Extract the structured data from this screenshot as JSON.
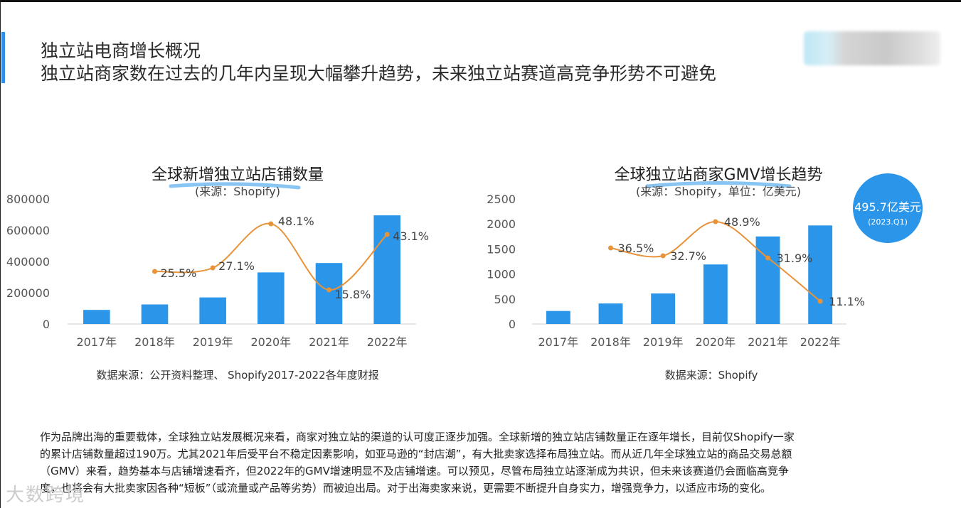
{
  "header": {
    "title_line1": "独立站电商增长概况",
    "title_line2": "独立站商家数在过去的几年内呈现大幅攀升趋势，未来独立站赛道高竞争形势不可避免"
  },
  "colors": {
    "bar": "#2b95e9",
    "line": "#e8923a",
    "accent": "#2f8fe6",
    "bubble": "#2b95e9"
  },
  "chart_data": [
    {
      "type": "bar",
      "title": "全球新增独立站店铺数量",
      "subtitle": "(来源：Shopify)",
      "categories": [
        "2017年",
        "2018年",
        "2019年",
        "2020年",
        "2021年",
        "2022年"
      ],
      "series": [
        {
          "name": "",
          "kind": "bar",
          "values": [
            90000,
            125000,
            170000,
            330000,
            390000,
            695000
          ]
        },
        {
          "name": "",
          "kind": "line",
          "values": [
            null,
            25.5,
            27.1,
            48.1,
            15.8,
            43.1
          ],
          "labels": [
            "",
            "25.5%",
            "27.1%",
            "48.1%",
            "15.8%",
            "43.1%"
          ]
        }
      ],
      "yticks": [
        "800000",
        "600000",
        "400000",
        "200000",
        "0"
      ],
      "ylim": [
        0,
        800000
      ],
      "grid": false,
      "source": "数据来源：公开资料整理、 Shopify2017-2022各年度财报"
    },
    {
      "type": "bar",
      "title": "全球独立站商家GMV增长趋势",
      "subtitle": "(来源：Shopify，单位：亿美元)",
      "categories": [
        "2017年",
        "2018年",
        "2019年",
        "2020年",
        "2021年",
        "2022年"
      ],
      "series": [
        {
          "name": "",
          "kind": "bar",
          "values": [
            260,
            410,
            610,
            1190,
            1750,
            1970
          ]
        },
        {
          "name": "",
          "kind": "line",
          "values": [
            null,
            36.5,
            32.7,
            48.9,
            31.9,
            11.1
          ],
          "labels": [
            "",
            "36.5%",
            "32.7%",
            "48.9%",
            "31.9%",
            "11.1%"
          ]
        }
      ],
      "yticks": [
        "2500",
        "2000",
        "1500",
        "1000",
        "500",
        "0"
      ],
      "ylim": [
        0,
        2500
      ],
      "grid": false,
      "source": "数据来源：Shopify",
      "callout": {
        "value": "495.7亿美元",
        "note": "(2023.Q1)"
      }
    }
  ],
  "paragraph": [
    "作为品牌出海的重要载体，全球独立站发展概况来看，商家对独立站的渠道的认可度正逐步加强。全球新增的独立站店铺数量正在逐年增长，目前仅Shopify一家",
    "的累计店铺数量超过190万。尤其2021年后受平台不稳定因素影响，如亚马逊的“封店潮”，有大批卖家选择布局独立站。而从近几年全球独立站的商品交易总额",
    "（GMV）来看，趋势基本与店铺增速看齐，但2022年的GMV增速明显不及店铺增速。可以预见，尽管布局独立站逐渐成为共识，但未来该赛道仍会面临高竞争",
    "度，也将会有大批卖家因各种“短板”（或流量或产品等劣势）而被迫出局。对于出海卖家来说，更需要不断提升自身实力，增强竞争力，以适应市场的变化。"
  ],
  "watermark": "大数跨境"
}
